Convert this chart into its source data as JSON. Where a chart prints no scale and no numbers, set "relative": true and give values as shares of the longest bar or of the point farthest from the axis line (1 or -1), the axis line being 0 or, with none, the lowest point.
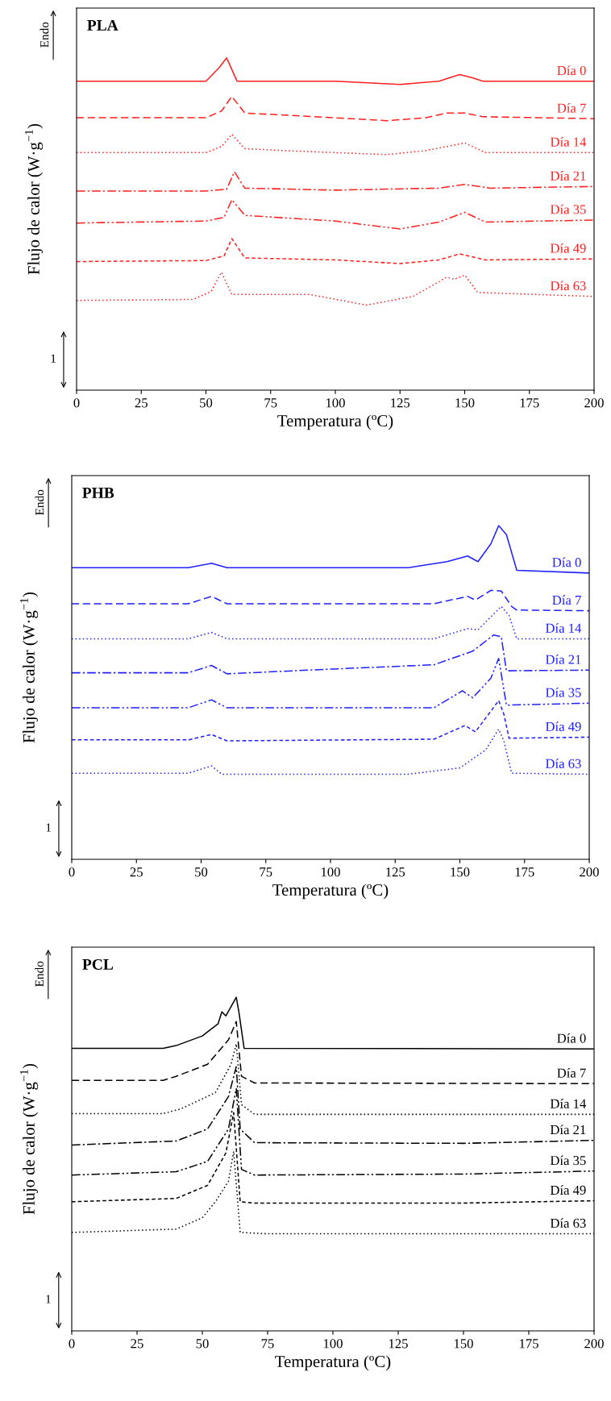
{
  "chart_data": [
    {
      "type": "line",
      "title": "PLA",
      "xlabel": "Temperatura (ºC)",
      "ylabel": "Flujo de calor (W·g$^{−1}$)",
      "relative": true,
      "xlim": [
        0,
        200
      ],
      "xticks": [
        0,
        25,
        50,
        75,
        100,
        125,
        150,
        175,
        200
      ],
      "tick_labels": "x",
      "grid": false,
      "legend": false,
      "marker": "none",
      "annotations": [
        "Endo",
        "1"
      ],
      "series": [
        {
          "name": "Día 0",
          "color": "#ff2020",
          "line_style": "solid",
          "x": [
            0,
            50,
            55,
            58,
            62,
            100,
            125,
            140,
            148,
            153,
            157,
            200
          ],
          "values": [
            0.93,
            0.93,
            0.97,
            1.0,
            0.93,
            0.93,
            0.92,
            0.93,
            0.95,
            0.94,
            0.93,
            0.93
          ]
        },
        {
          "name": "Día 7",
          "color": "#ff2020",
          "line_style": "dashed",
          "x": [
            0,
            50,
            56,
            60,
            65,
            80,
            120,
            135,
            143,
            150,
            157,
            200
          ],
          "values": [
            0.82,
            0.82,
            0.84,
            0.884,
            0.834,
            0.828,
            0.811,
            0.82,
            0.834,
            0.834,
            0.823,
            0.817
          ]
        },
        {
          "name": "Día 14",
          "color": "#ff2020",
          "line_style": "dotted",
          "x": [
            0,
            50,
            56,
            60,
            65,
            80,
            120,
            135,
            150,
            158,
            200
          ],
          "values": [
            0.715,
            0.715,
            0.733,
            0.77,
            0.727,
            0.721,
            0.709,
            0.721,
            0.744,
            0.715,
            0.715
          ]
        },
        {
          "name": "Día 21",
          "color": "#ff2020",
          "line_style": "dashdot",
          "x": [
            0,
            50,
            58,
            61,
            65,
            100,
            140,
            150,
            160,
            200
          ],
          "values": [
            0.599,
            0.599,
            0.605,
            0.657,
            0.608,
            0.602,
            0.608,
            0.619,
            0.608,
            0.613
          ]
        },
        {
          "name": "Día 35",
          "color": "#ff2020",
          "line_style": "dashdotdot",
          "x": [
            0,
            50,
            57,
            60,
            65,
            100,
            125,
            140,
            150,
            158,
            200
          ],
          "values": [
            0.503,
            0.509,
            0.52,
            0.573,
            0.526,
            0.509,
            0.485,
            0.506,
            0.535,
            0.506,
            0.512
          ]
        },
        {
          "name": "Día 49",
          "color": "#ff2020",
          "line_style": "shortdash",
          "x": [
            0,
            50,
            57,
            60,
            65,
            100,
            125,
            140,
            148,
            158,
            200
          ],
          "values": [
            0.387,
            0.39,
            0.404,
            0.456,
            0.398,
            0.392,
            0.381,
            0.392,
            0.41,
            0.392,
            0.395
          ]
        },
        {
          "name": "Día 63",
          "color": "#ff2020",
          "line_style": "dotted",
          "x": [
            0,
            45,
            52,
            56,
            60,
            90,
            112,
            130,
            140,
            143,
            146,
            150,
            155,
            200
          ],
          "values": [
            0.27,
            0.273,
            0.297,
            0.355,
            0.288,
            0.288,
            0.256,
            0.282,
            0.326,
            0.34,
            0.334,
            0.346,
            0.294,
            0.282
          ]
        }
      ]
    },
    {
      "type": "line",
      "title": "PHB",
      "xlabel": "Temperatura (ºC)",
      "ylabel": "Flujo de calor (W·g$^{−1}$)",
      "relative": true,
      "xlim": [
        0,
        200
      ],
      "xticks": [
        0,
        25,
        50,
        75,
        100,
        125,
        150,
        175,
        200
      ],
      "tick_labels": "x",
      "grid": false,
      "legend": false,
      "marker": "none",
      "annotations": [
        "Endo",
        "1"
      ],
      "series": [
        {
          "name": "Día 0",
          "color": "#2020ff",
          "line_style": "solid",
          "x": [
            0,
            45,
            54,
            60,
            130,
            145,
            153,
            157,
            162,
            165,
            168,
            172,
            200
          ],
          "values": [
            0.874,
            0.874,
            0.887,
            0.874,
            0.874,
            0.892,
            0.909,
            0.892,
            0.946,
            1.0,
            0.973,
            0.866,
            0.858
          ]
        },
        {
          "name": "Día 7",
          "color": "#2020ff",
          "line_style": "dashed",
          "x": [
            0,
            45,
            54,
            60,
            140,
            153,
            156,
            162,
            166,
            170,
            172,
            200
          ],
          "values": [
            0.766,
            0.766,
            0.788,
            0.766,
            0.766,
            0.788,
            0.777,
            0.806,
            0.804,
            0.758,
            0.747,
            0.745
          ]
        },
        {
          "name": "Día 14",
          "color": "#2020ff",
          "line_style": "dotted",
          "x": [
            0,
            45,
            54,
            60,
            140,
            153,
            157,
            166,
            169,
            172,
            200
          ],
          "values": [
            0.661,
            0.661,
            0.68,
            0.661,
            0.661,
            0.691,
            0.688,
            0.758,
            0.731,
            0.661,
            0.661
          ]
        },
        {
          "name": "Día 21",
          "color": "#2020ff",
          "line_style": "dashdot",
          "x": [
            0,
            45,
            54,
            60,
            100,
            140,
            155,
            163,
            166,
            168,
            200
          ],
          "values": [
            0.559,
            0.559,
            0.581,
            0.556,
            0.57,
            0.583,
            0.624,
            0.672,
            0.667,
            0.565,
            0.567
          ]
        },
        {
          "name": "Día 35",
          "color": "#2020ff",
          "line_style": "dashdotdot",
          "x": [
            0,
            45,
            54,
            60,
            140,
            151,
            155,
            162,
            165,
            168,
            200
          ],
          "values": [
            0.454,
            0.454,
            0.478,
            0.454,
            0.454,
            0.505,
            0.484,
            0.543,
            0.602,
            0.462,
            0.468
          ]
        },
        {
          "name": "Día 49",
          "color": "#2020ff",
          "line_style": "shortdash",
          "x": [
            0,
            45,
            54,
            60,
            140,
            152,
            156,
            162,
            165,
            167,
            169,
            200
          ],
          "values": [
            0.358,
            0.358,
            0.374,
            0.355,
            0.36,
            0.401,
            0.382,
            0.444,
            0.476,
            0.435,
            0.363,
            0.366
          ]
        },
        {
          "name": "Día 63",
          "color": "#2020ff",
          "line_style": "dotted",
          "x": [
            0,
            45,
            54,
            58,
            130,
            150,
            160,
            165,
            167,
            170,
            200
          ],
          "values": [
            0.258,
            0.258,
            0.28,
            0.255,
            0.255,
            0.274,
            0.328,
            0.39,
            0.355,
            0.258,
            0.255
          ]
        }
      ]
    },
    {
      "type": "line",
      "title": "PCL",
      "xlabel": "Temperatura (ºC)",
      "ylabel": "Flujo de calor (W·g$^{−1}$)",
      "relative": true,
      "xlim": [
        0,
        200
      ],
      "xticks": [
        0,
        25,
        50,
        75,
        100,
        125,
        150,
        175,
        200
      ],
      "tick_labels": "x",
      "grid": false,
      "legend": false,
      "marker": "none",
      "annotations": [
        "Endo",
        "1"
      ],
      "series": [
        {
          "name": "Día 0",
          "color": "#000000",
          "line_style": "solid",
          "x": [
            0,
            35,
            40,
            50,
            56,
            57.5,
            59,
            63,
            64,
            66,
            200
          ],
          "values": [
            0.847,
            0.847,
            0.855,
            0.884,
            0.92,
            0.956,
            0.944,
            1.0,
            0.956,
            0.847,
            0.845
          ]
        },
        {
          "name": "Día 7",
          "color": "#000000",
          "line_style": "dashed",
          "x": [
            0,
            35,
            40,
            52,
            60,
            63,
            65,
            70,
            200
          ],
          "values": [
            0.751,
            0.751,
            0.763,
            0.799,
            0.872,
            0.927,
            0.763,
            0.743,
            0.741
          ]
        },
        {
          "name": "Día 14",
          "color": "#000000",
          "line_style": "dotted",
          "x": [
            0,
            35,
            42,
            55,
            61,
            63,
            65,
            70,
            200
          ],
          "values": [
            0.651,
            0.651,
            0.666,
            0.714,
            0.799,
            0.86,
            0.678,
            0.649,
            0.649
          ]
        },
        {
          "name": "Día 21",
          "color": "#000000",
          "line_style": "dashdot",
          "x": [
            0,
            40,
            52,
            60,
            63,
            64.5,
            70,
            150,
            200
          ],
          "values": [
            0.557,
            0.569,
            0.605,
            0.702,
            0.792,
            0.605,
            0.564,
            0.562,
            0.571
          ]
        },
        {
          "name": "Día 35",
          "color": "#000000",
          "line_style": "dashdotdot",
          "x": [
            0,
            40,
            52,
            60,
            63,
            65,
            70,
            150,
            200
          ],
          "values": [
            0.467,
            0.477,
            0.508,
            0.605,
            0.726,
            0.484,
            0.467,
            0.47,
            0.479
          ]
        },
        {
          "name": "Día 49",
          "color": "#000000",
          "line_style": "shortdash",
          "x": [
            0,
            40,
            52,
            59,
            62,
            64.5,
            70,
            150,
            200
          ],
          "values": [
            0.387,
            0.397,
            0.436,
            0.533,
            0.654,
            0.387,
            0.383,
            0.383,
            0.39
          ]
        },
        {
          "name": "Día 63",
          "color": "#000000",
          "line_style": "dotted",
          "x": [
            0,
            40,
            50,
            55,
            60,
            62,
            64.5,
            75,
            200
          ],
          "values": [
            0.295,
            0.305,
            0.339,
            0.387,
            0.448,
            0.538,
            0.295,
            0.291,
            0.291
          ]
        }
      ]
    }
  ]
}
